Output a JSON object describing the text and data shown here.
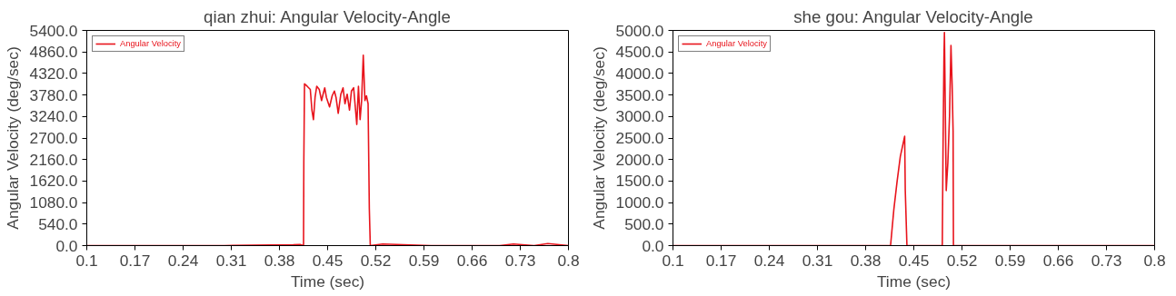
{
  "chart_data": [
    {
      "type": "line",
      "title": "qian zhui: Angular Velocity-Angle",
      "xlabel": "Time (sec)",
      "ylabel": "Angular Velocity (deg/sec)",
      "xlim": [
        0.1,
        0.8
      ],
      "ylim": [
        0,
        5400
      ],
      "xticks": [
        0.1,
        0.17,
        0.24,
        0.31,
        0.38,
        0.45,
        0.52,
        0.59,
        0.66,
        0.73,
        0.8
      ],
      "yticks": [
        {
          "value": 0,
          "label": "0.0"
        },
        {
          "value": 540,
          "label": "540.0"
        },
        {
          "value": 1080,
          "label": "1080.0"
        },
        {
          "value": 1620,
          "label": "1620.0"
        },
        {
          "value": 2160,
          "label": "2160.0"
        },
        {
          "value": 2700,
          "label": "2700.0"
        },
        {
          "value": 3240,
          "label": "3240.0"
        },
        {
          "value": 3780,
          "label": "3780.0"
        },
        {
          "value": 4320,
          "label": "4320.0"
        },
        {
          "value": 4860,
          "label": "4860.0"
        },
        {
          "value": 5400,
          "label": "5400.0"
        }
      ],
      "grid": false,
      "legend": "top left",
      "marker": "none",
      "line_style": "solid",
      "series": [
        {
          "name": "Angular Velocity",
          "color": "#e8141c",
          "x": [
            0.1,
            0.3,
            0.4,
            0.41,
            0.415,
            0.4154,
            0.4164,
            0.4202,
            0.4248,
            0.4272,
            0.4294,
            0.4318,
            0.4342,
            0.4378,
            0.4412,
            0.4434,
            0.4458,
            0.4482,
            0.4528,
            0.4566,
            0.4598,
            0.4622,
            0.4654,
            0.4692,
            0.4724,
            0.4752,
            0.4784,
            0.4818,
            0.4846,
            0.4878,
            0.4902,
            0.4924,
            0.4948,
            0.4972,
            0.4994,
            0.5018,
            0.5042,
            0.5064,
            0.5088,
            0.5106,
            0.512,
            0.53,
            0.55,
            0.6,
            0.7,
            0.72,
            0.75,
            0.77,
            0.8
          ],
          "values": [
            0,
            0,
            20,
            30,
            0,
            2060,
            4060,
            4000,
            3920,
            3400,
            3160,
            3730,
            4000,
            3920,
            3640,
            3800,
            3960,
            3720,
            3480,
            3760,
            3880,
            3720,
            3320,
            3800,
            3960,
            3560,
            3800,
            3400,
            3880,
            3960,
            3480,
            3040,
            4000,
            3160,
            3640,
            4780,
            3640,
            3760,
            3560,
            930,
            0,
            40,
            30,
            0,
            0,
            40,
            0,
            50,
            0
          ]
        }
      ]
    },
    {
      "type": "line",
      "title": "she gou: Angular Velocity-Angle",
      "xlabel": "Time (sec)",
      "ylabel": "Angular Velocity (deg/sec)",
      "xlim": [
        0.1,
        0.8
      ],
      "ylim": [
        0,
        5000
      ],
      "xticks": [
        0.1,
        0.17,
        0.24,
        0.31,
        0.38,
        0.45,
        0.52,
        0.59,
        0.66,
        0.73,
        0.8
      ],
      "yticks": [
        {
          "value": 0,
          "label": "0.0"
        },
        {
          "value": 500,
          "label": "500.0"
        },
        {
          "value": 1000,
          "label": "1000.0"
        },
        {
          "value": 1500,
          "label": "1500.0"
        },
        {
          "value": 2000,
          "label": "2000.0"
        },
        {
          "value": 2500,
          "label": "2500.0"
        },
        {
          "value": 3000,
          "label": "3000.0"
        },
        {
          "value": 3500,
          "label": "3500.0"
        },
        {
          "value": 4000,
          "label": "4000.0"
        },
        {
          "value": 4500,
          "label": "4500.0"
        },
        {
          "value": 5000,
          "label": "5000.0"
        }
      ],
      "grid": false,
      "legend": "top left",
      "marker": "none",
      "line_style": "solid",
      "series": [
        {
          "name": "Angular Velocity",
          "color": "#e8141c",
          "x": [
            0.1,
            0.4162,
            0.421,
            0.4257,
            0.4304,
            0.4367,
            0.4376,
            0.44,
            0.4914,
            0.4924,
            0.4938,
            0.4945,
            0.4971,
            0.4995,
            0.5019,
            0.504,
            0.5057,
            0.5071,
            0.5076,
            0.8
          ],
          "values": [
            0,
            0,
            840,
            1490,
            2070,
            2540,
            1280,
            0,
            0,
            2140,
            4380,
            4950,
            1280,
            1930,
            3010,
            4650,
            3730,
            2650,
            0,
            0
          ]
        }
      ]
    }
  ]
}
